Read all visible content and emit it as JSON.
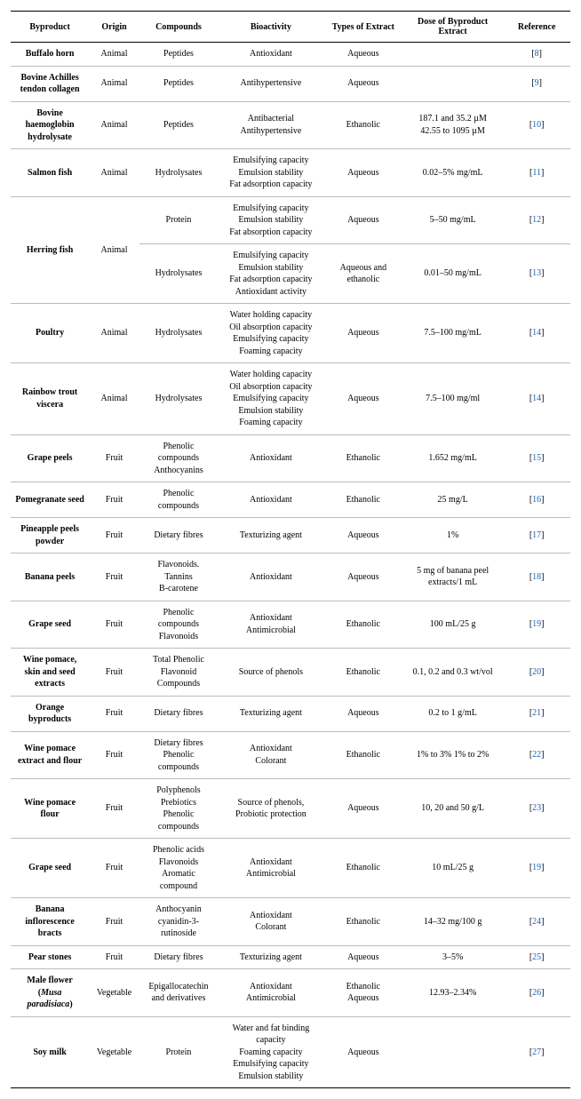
{
  "headers": {
    "byproduct": "Byproduct",
    "origin": "Origin",
    "compounds": "Compounds",
    "bioactivity": "Bioactivity",
    "extract": "Types of Extract",
    "dose": "Dose of Byproduct Extract",
    "reference": "Reference"
  },
  "rows": [
    {
      "byproduct": "Buffalo horn",
      "origin": "Animal",
      "compounds": "Peptides",
      "bioactivity": "Antioxidant",
      "extract": "Aqueous",
      "dose": "",
      "ref": "8"
    },
    {
      "byproduct": "Bovine Achilles tendon collagen",
      "origin": "Animal",
      "compounds": "Peptides",
      "bioactivity": "Antihypertensive",
      "extract": "Aqueous",
      "dose": "",
      "ref": "9"
    },
    {
      "byproduct": "Bovine haemoglobin hydrolysate",
      "origin": "Animal",
      "compounds": "Peptides",
      "bioactivity": "Antibacterial\nAntihypertensive",
      "extract": "Ethanolic",
      "dose": "187.1 and 35.2 µM\n42.55 to 1095 µM",
      "ref": "10"
    },
    {
      "byproduct": "Salmon fish",
      "origin": "Animal",
      "compounds": "Hydrolysates",
      "bioactivity": "Emulsifying capacity\nEmulsion stability\nFat adsorption capacity",
      "extract": "Aqueous",
      "dose": "0.02–5% mg/mL",
      "ref": "11"
    },
    {
      "byproduct": "Herring fish",
      "byproduct_rowspan": 2,
      "origin": "Animal",
      "origin_rowspan": 2,
      "compounds": "Protein",
      "bioactivity": "Emulsifying capacity\nEmulsion stability\nFat absorption capacity",
      "extract": "Aqueous",
      "dose": "5–50 mg/mL",
      "ref": "12"
    },
    {
      "skip_byproduct": true,
      "skip_origin": true,
      "compounds": "Hydrolysates",
      "bioactivity": "Emulsifying capacity\nEmulsion stability\nFat adsorption capacity\nAntioxidant activity",
      "extract": "Aqueous and ethanolic",
      "dose": "0.01–50 mg/mL",
      "ref": "13"
    },
    {
      "byproduct": "Poultry",
      "origin": "Animal",
      "compounds": "Hydrolysates",
      "bioactivity": "Water holding capacity\nOil absorption capacity\nEmulsifying capacity\nFoaming capacity",
      "extract": "Aqueous",
      "dose": "7.5–100 mg/mL",
      "ref": "14"
    },
    {
      "byproduct": "Rainbow trout viscera",
      "origin": "Animal",
      "compounds": "Hydrolysates",
      "bioactivity": "Water holding capacity\nOil absorption capacity\nEmulsifying capacity\nEmulsion stability\nFoaming capacity",
      "extract": "Aqueous",
      "dose": "7.5–100 mg/ml",
      "ref": "14"
    },
    {
      "byproduct": "Grape peels",
      "origin": "Fruit",
      "compounds": "Phenolic compounds\nAnthocyanins",
      "bioactivity": "Antioxidant",
      "extract": "Ethanolic",
      "dose": "1.652 mg/mL",
      "ref": "15"
    },
    {
      "byproduct": "Pomegranate seed",
      "origin": "Fruit",
      "compounds": "Phenolic compounds",
      "bioactivity": "Antioxidant",
      "extract": "Ethanolic",
      "dose": "25 mg/L",
      "ref": "16"
    },
    {
      "byproduct": "Pineapple peels powder",
      "origin": "Fruit",
      "compounds": "Dietary fibres",
      "bioactivity": "Texturizing agent",
      "extract": "Aqueous",
      "dose": "1%",
      "ref": "17"
    },
    {
      "byproduct": "Banana peels",
      "origin": "Fruit",
      "compounds": "Flavonoids.\nTannins\nB-carotene",
      "bioactivity": "Antioxidant",
      "extract": "Aqueous",
      "dose": "5 mg of banana peel extracts/1 mL",
      "ref": "18"
    },
    {
      "byproduct": "Grape seed",
      "origin": "Fruit",
      "compounds": "Phenolic compounds\nFlavonoids",
      "bioactivity": "Antioxidant\nAntimicrobial",
      "extract": "Ethanolic",
      "dose": "100 mL/25 g",
      "ref": "19"
    },
    {
      "byproduct": "Wine pomace, skin and seed extracts",
      "origin": "Fruit",
      "compounds": "Total Phenolic\nFlavonoid\nCompounds",
      "bioactivity": "Source of phenols",
      "extract": "Ethanolic",
      "dose": "0.1, 0.2 and 0.3 wt/vol",
      "ref": "20"
    },
    {
      "byproduct": "Orange byproducts",
      "origin": "Fruit",
      "compounds": "Dietary fibres",
      "bioactivity": "Texturizing agent",
      "extract": "Aqueous",
      "dose": "0.2 to 1 g/mL",
      "ref": "21"
    },
    {
      "byproduct": "Wine pomace extract and flour",
      "origin": "Fruit",
      "compounds": "Dietary fibres\nPhenolic compounds",
      "bioactivity": "Antioxidant\nColorant",
      "extract": "Ethanolic",
      "dose": "1% to 3% 1% to 2%",
      "ref": "22"
    },
    {
      "byproduct": "Wine pomace flour",
      "origin": "Fruit",
      "compounds": "Polyphenols\nPrebiotics\nPhenolic compounds",
      "bioactivity": "Source of phenols,\nProbiotic protection",
      "extract": "Aqueous",
      "dose": "10, 20 and 50 g/L",
      "ref": "23"
    },
    {
      "byproduct": "Grape seed",
      "origin": "Fruit",
      "compounds": "Phenolic acids\nFlavonoids\nAromatic compound",
      "bioactivity": "Antioxidant\nAntimicrobial",
      "extract": "Ethanolic",
      "dose": "10 mL/25 g",
      "ref": "19"
    },
    {
      "byproduct": "Banana inflorescence bracts",
      "origin": "Fruit",
      "compounds": "Anthocyanin cyanidin-3-rutinoside",
      "bioactivity": "Antioxidant\nColorant",
      "extract": "Ethanolic",
      "dose": "14–32 mg/100 g",
      "ref": "24"
    },
    {
      "byproduct": "Pear stones",
      "origin": "Fruit",
      "compounds": "Dietary fibres",
      "bioactivity": "Texturizing agent",
      "extract": "Aqueous",
      "dose": "3–5%",
      "ref": "25"
    },
    {
      "byproduct_html": "Male flower (<span class=\"italic\">Musa paradisiaca</span>)",
      "origin": "Vegetable",
      "compounds": "Epigallocatechin and derivatives",
      "bioactivity": "Antioxidant\nAntimicrobial",
      "extract": "Ethanolic\nAqueous",
      "dose": "12.93–2.34%",
      "ref": "26"
    },
    {
      "byproduct": "Soy milk",
      "origin": "Vegetable",
      "compounds": "Protein",
      "bioactivity": "Water and fat binding capacity\nFoaming capacity\nEmulsifying capacity\nEmulsion stability",
      "extract": "Aqueous",
      "dose": "",
      "ref": "27",
      "last": true
    }
  ]
}
